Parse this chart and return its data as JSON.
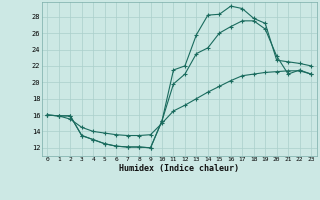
{
  "xlabel": "Humidex (Indice chaleur)",
  "bg_color": "#cce8e4",
  "line_color": "#1a6b5e",
  "grid_color": "#aacfcb",
  "x_ticks": [
    0,
    1,
    2,
    3,
    4,
    5,
    6,
    7,
    8,
    9,
    10,
    11,
    12,
    13,
    14,
    15,
    16,
    17,
    18,
    19,
    20,
    21,
    22,
    23
  ],
  "y_ticks": [
    12,
    14,
    16,
    18,
    20,
    22,
    24,
    26,
    28
  ],
  "xlim": [
    -0.5,
    23.5
  ],
  "ylim": [
    11.0,
    29.8
  ],
  "line1_x": [
    0,
    1,
    2,
    3,
    4,
    5,
    6,
    7,
    8,
    9,
    10,
    11,
    12,
    13,
    14,
    15,
    16,
    17,
    18,
    19,
    20,
    21,
    22,
    23
  ],
  "line1_y": [
    16.0,
    15.9,
    15.9,
    13.5,
    13.0,
    12.5,
    12.2,
    12.1,
    12.1,
    12.0,
    15.3,
    21.5,
    22.0,
    25.8,
    28.2,
    28.3,
    29.3,
    29.0,
    27.8,
    27.2,
    22.7,
    22.5,
    22.3,
    22.0
  ],
  "line2_x": [
    0,
    1,
    2,
    3,
    4,
    5,
    6,
    7,
    8,
    9,
    10,
    11,
    12,
    13,
    14,
    15,
    16,
    17,
    18,
    19,
    20,
    21,
    22,
    23
  ],
  "line2_y": [
    16.0,
    15.9,
    15.9,
    13.5,
    13.0,
    12.5,
    12.2,
    12.1,
    12.1,
    12.0,
    15.3,
    19.8,
    21.0,
    23.5,
    24.2,
    26.0,
    26.8,
    27.5,
    27.5,
    26.5,
    23.2,
    21.0,
    21.5,
    21.0
  ],
  "line3_x": [
    0,
    1,
    2,
    3,
    4,
    5,
    6,
    7,
    8,
    9,
    10,
    11,
    12,
    13,
    14,
    15,
    16,
    17,
    18,
    19,
    20,
    21,
    22,
    23
  ],
  "line3_y": [
    16.0,
    15.9,
    15.5,
    14.5,
    14.0,
    13.8,
    13.6,
    13.5,
    13.5,
    13.6,
    15.0,
    16.5,
    17.2,
    18.0,
    18.8,
    19.5,
    20.2,
    20.8,
    21.0,
    21.2,
    21.3,
    21.4,
    21.4,
    21.0
  ]
}
